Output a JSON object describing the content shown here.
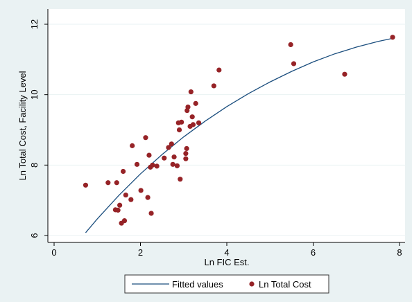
{
  "chart_data": {
    "type": "scatter",
    "xlabel": "Ln FIC Est.",
    "ylabel": "Ln Total Cost, Facility Level",
    "xlim": [
      0,
      8
    ],
    "ylim": [
      6,
      12
    ],
    "xticks": [
      0,
      2,
      4,
      6,
      8
    ],
    "yticks": [
      6,
      8,
      10,
      12
    ],
    "grid": "horizontal",
    "legend_position": "bottom",
    "colors": {
      "background": "#eaf2f3",
      "plot_background": "#ffffff",
      "fitted_line": "#1b4e7e",
      "points": "#962327",
      "grid": "#eaf2f3"
    },
    "series": [
      {
        "name": "Fitted values",
        "kind": "line",
        "x": [
          0.73,
          1.0,
          1.5,
          2.0,
          2.5,
          3.0,
          3.5,
          4.0,
          4.5,
          5.0,
          5.5,
          6.0,
          6.5,
          7.0,
          7.5,
          7.84
        ],
        "y": [
          6.08,
          6.47,
          7.14,
          7.75,
          8.3,
          8.8,
          9.25,
          9.66,
          10.03,
          10.36,
          10.66,
          10.93,
          11.16,
          11.35,
          11.51,
          11.6
        ]
      },
      {
        "name": "Ln Total Cost",
        "kind": "scatter",
        "x": [
          0.73,
          1.25,
          1.45,
          1.42,
          1.48,
          1.52,
          1.56,
          1.6,
          1.63,
          1.66,
          1.78,
          1.81,
          1.92,
          2.01,
          2.12,
          2.17,
          2.2,
          2.23,
          2.25,
          2.28,
          2.38,
          2.55,
          2.65,
          2.72,
          2.75,
          2.78,
          2.85,
          2.88,
          2.9,
          2.92,
          2.95,
          3.05,
          3.05,
          3.07,
          3.08,
          3.1,
          3.15,
          3.17,
          3.2,
          3.22,
          3.28,
          3.35,
          3.7,
          3.82,
          5.48,
          5.55,
          6.73,
          7.84
        ],
        "y": [
          7.43,
          7.5,
          7.5,
          6.73,
          6.72,
          6.86,
          6.35,
          7.82,
          6.42,
          7.15,
          7.02,
          8.55,
          8.02,
          7.28,
          8.78,
          7.08,
          8.28,
          7.94,
          6.63,
          8.0,
          7.97,
          8.2,
          8.5,
          8.6,
          8.02,
          8.23,
          7.98,
          9.2,
          9.0,
          7.6,
          9.22,
          8.18,
          8.33,
          8.47,
          9.55,
          9.65,
          9.1,
          10.08,
          9.37,
          9.15,
          9.75,
          9.2,
          10.25,
          10.7,
          11.42,
          10.88,
          10.58,
          11.63
        ]
      }
    ]
  }
}
